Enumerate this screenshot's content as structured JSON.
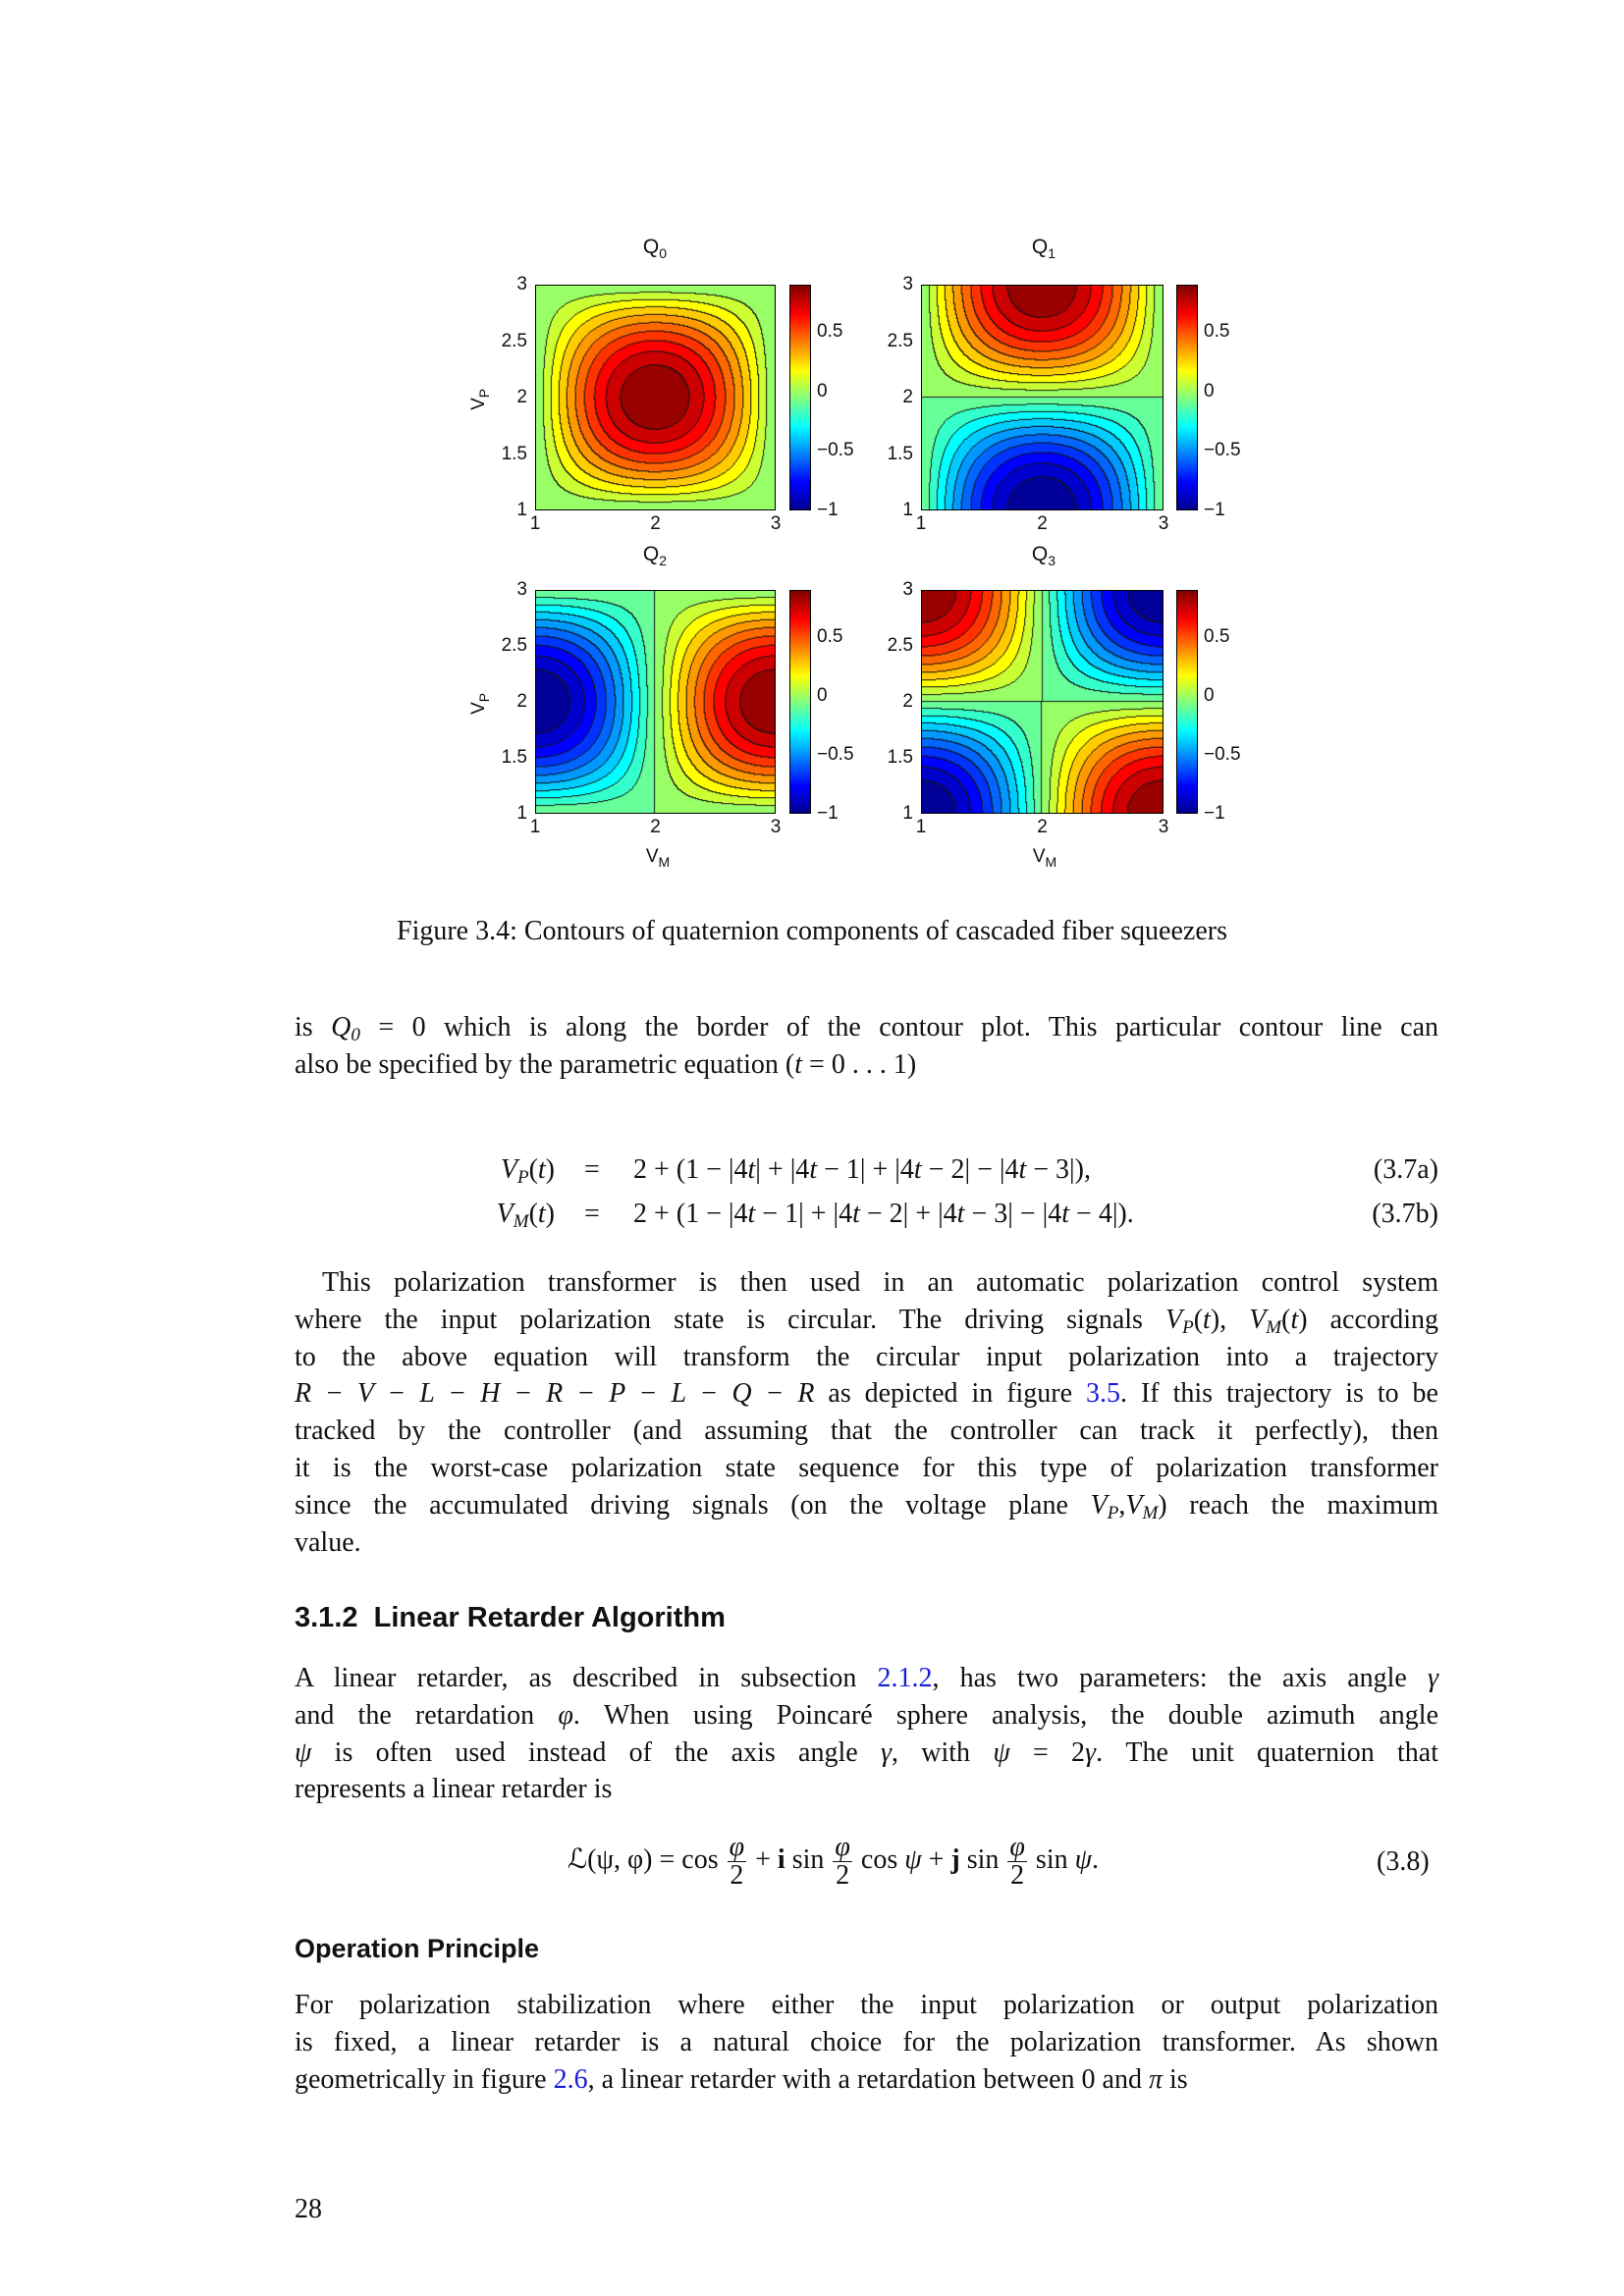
{
  "figure": {
    "caption": "Figure 3.4: Contours of quaternion components of cascaded fiber squeezers"
  },
  "chart_data": [
    {
      "type": "heatmap",
      "subtype": "filled-contour",
      "title": "Q",
      "title_sub": "0",
      "xlabel": "",
      "ylabel": "V",
      "ylabel_sub": "P",
      "xlim": [
        1,
        3
      ],
      "ylim": [
        1,
        3
      ],
      "xticks": [
        "1",
        "2",
        "3"
      ],
      "yticks": [
        "1",
        "1.5",
        "2",
        "2.5",
        "3"
      ],
      "colorbar": {
        "range": [
          -1,
          0.9
        ],
        "ticks": [
          "0.5",
          "0",
          "−0.5",
          "−1"
        ],
        "colormap": "jet"
      },
      "levels_step": 0.1,
      "peak": {
        "VM": 2,
        "VP": 2,
        "value": 1
      },
      "zero_contours": [
        "border"
      ]
    },
    {
      "type": "heatmap",
      "subtype": "filled-contour",
      "title": "Q",
      "title_sub": "1",
      "xlabel": "",
      "ylabel": "",
      "xlim": [
        1,
        3
      ],
      "ylim": [
        1,
        3
      ],
      "xticks": [
        "1",
        "2",
        "3"
      ],
      "yticks": [
        "1",
        "1.5",
        "2",
        "2.5",
        "3"
      ],
      "colorbar": {
        "range": [
          -1,
          0.9
        ],
        "ticks": [
          "0.5",
          "0",
          "−0.5",
          "−1"
        ],
        "colormap": "jet"
      },
      "levels_step": 0.1,
      "max": {
        "VM": 2,
        "VP": 3,
        "value": 1
      },
      "min": {
        "VM": 2,
        "VP": 1,
        "value": -1
      },
      "zero_contours": [
        "VP=2",
        "VM=1",
        "VM=3"
      ]
    },
    {
      "type": "heatmap",
      "subtype": "filled-contour",
      "title": "Q",
      "title_sub": "2",
      "xlabel": "V",
      "xlabel_sub": "M",
      "ylabel": "V",
      "ylabel_sub": "P",
      "xlim": [
        1,
        3
      ],
      "ylim": [
        1,
        3
      ],
      "xticks": [
        "1",
        "2",
        "3"
      ],
      "yticks": [
        "1",
        "1.5",
        "2",
        "2.5",
        "3"
      ],
      "colorbar": {
        "range": [
          -1,
          0.9
        ],
        "ticks": [
          "0.5",
          "0",
          "−0.5",
          "−1"
        ],
        "colormap": "jet"
      },
      "levels_step": 0.1,
      "max": {
        "VM": 3,
        "VP": 2,
        "value": 1
      },
      "min": {
        "VM": 1,
        "VP": 2,
        "value": -1
      },
      "zero_contours": [
        "VM=2",
        "VP=1",
        "VP=3"
      ]
    },
    {
      "type": "heatmap",
      "subtype": "filled-contour",
      "title": "Q",
      "title_sub": "3",
      "xlabel": "V",
      "xlabel_sub": "M",
      "ylabel": "",
      "xlim": [
        1,
        3
      ],
      "ylim": [
        1,
        3
      ],
      "xticks": [
        "1",
        "2",
        "3"
      ],
      "yticks": [
        "1",
        "1.5",
        "2",
        "2.5",
        "3"
      ],
      "colorbar": {
        "range": [
          -1,
          0.9
        ],
        "ticks": [
          "0.5",
          "0",
          "−0.5",
          "−1"
        ],
        "colormap": "jet"
      },
      "levels_step": 0.1,
      "max": [
        {
          "VM": 1,
          "VP": 3,
          "value": 1
        },
        {
          "VM": 3,
          "VP": 1,
          "value": 1
        }
      ],
      "min": [
        {
          "VM": 3,
          "VP": 3,
          "value": -1
        },
        {
          "VM": 1,
          "VP": 1,
          "value": -1
        }
      ],
      "zero_contours": [
        "VM=2",
        "VP=2"
      ]
    }
  ],
  "para1": [
    [
      [
        "",
        "is "
      ],
      [
        "i",
        "Q"
      ],
      [
        "s",
        "0"
      ],
      [
        "",
        " = 0 which is along the border of the contour plot. This particular contour line can"
      ]
    ],
    [
      [
        "",
        "also be specified by the parametric equation ("
      ],
      [
        "i",
        "t"
      ],
      [
        "",
        " = 0 . . . 1)"
      ]
    ]
  ],
  "eq37": [
    {
      "lhs": [
        [
          "i",
          "V"
        ],
        [
          "s",
          "P"
        ],
        [
          "",
          "("
        ],
        [
          "i",
          "t"
        ],
        [
          "",
          ")"
        ]
      ],
      "rhs": [
        [
          "",
          "2 + (1 − |4"
        ],
        [
          "i",
          "t"
        ],
        [
          "",
          "| + |4"
        ],
        [
          "i",
          "t"
        ],
        [
          "",
          " − 1| + |4"
        ],
        [
          "i",
          "t"
        ],
        [
          "",
          " − 2| − |4"
        ],
        [
          "i",
          "t"
        ],
        [
          "",
          " − 3|),"
        ]
      ],
      "num": "(3.7a)"
    },
    {
      "lhs": [
        [
          "i",
          "V"
        ],
        [
          "s",
          "M"
        ],
        [
          "",
          "("
        ],
        [
          "i",
          "t"
        ],
        [
          "",
          ")"
        ]
      ],
      "rhs": [
        [
          "",
          "2 + (1 − |4"
        ],
        [
          "i",
          "t"
        ],
        [
          "",
          " − 1| + |4"
        ],
        [
          "i",
          "t"
        ],
        [
          "",
          " − 2| + |4"
        ],
        [
          "i",
          "t"
        ],
        [
          "",
          " − 3| − |4"
        ],
        [
          "i",
          "t"
        ],
        [
          "",
          " − 4|)."
        ]
      ],
      "num": "(3.7b)"
    }
  ],
  "eq_sign": "=",
  "para2": [
    [
      [
        "",
        " This polarization transformer is then used in an automatic polarization control system"
      ]
    ],
    [
      [
        "",
        "where the input polarization state is circular. The driving signals "
      ],
      [
        "i",
        "V"
      ],
      [
        "s",
        "P"
      ],
      [
        "",
        "("
      ],
      [
        "i",
        "t"
      ],
      [
        "",
        "), "
      ],
      [
        "i",
        "V"
      ],
      [
        "s",
        "M"
      ],
      [
        "",
        "("
      ],
      [
        "i",
        "t"
      ],
      [
        "",
        ") according"
      ]
    ],
    [
      [
        "",
        "to the above equation will transform the circular input polarization into a trajectory"
      ]
    ],
    [
      [
        "i",
        "R − V − L − H − R − P − L − Q − R"
      ],
      [
        "",
        " as depicted in figure "
      ],
      [
        "l",
        "3.5"
      ],
      [
        "",
        ". If this trajectory is to be"
      ]
    ],
    [
      [
        "",
        "tracked by the controller (and assuming that the controller can track it perfectly), then"
      ]
    ],
    [
      [
        "",
        "it is the worst-case polarization state sequence for this type of polarization transformer"
      ]
    ],
    [
      [
        "",
        "since the accumulated driving signals (on the voltage plane "
      ],
      [
        "i",
        "V"
      ],
      [
        "s",
        "P"
      ],
      [
        "",
        ","
      ],
      [
        "i",
        "V"
      ],
      [
        "s",
        "M"
      ],
      [
        "",
        ") reach the maximum"
      ]
    ],
    [
      [
        "",
        "value."
      ]
    ]
  ],
  "section": {
    "number": "3.1.2",
    "title": "Linear Retarder Algorithm"
  },
  "para3": [
    [
      [
        "",
        "A linear retarder, as described in subsection "
      ],
      [
        "l",
        "2.1.2"
      ],
      [
        "",
        ", has two parameters: the axis angle "
      ],
      [
        "i",
        "γ"
      ]
    ],
    [
      [
        "",
        "and the retardation "
      ],
      [
        "i",
        "φ"
      ],
      [
        "",
        ". When using Poincaré sphere analysis, the double azimuth angle"
      ]
    ],
    [
      [
        "i",
        "ψ"
      ],
      [
        "",
        " is often used instead of the axis angle "
      ],
      [
        "i",
        "γ"
      ],
      [
        "",
        ", with "
      ],
      [
        "i",
        "ψ"
      ],
      [
        "",
        " = 2"
      ],
      [
        "i",
        "γ"
      ],
      [
        "",
        ". The unit quaternion that"
      ]
    ],
    [
      [
        "",
        "represents a linear retarder is"
      ]
    ]
  ],
  "eq38": {
    "lhs": "ℒ(ψ, φ) = cos",
    "frac_num": "φ",
    "frac_den": "2",
    "t1": "+ ",
    "i": "i",
    "t2": " sin",
    "t3": " cos ",
    "psi": "ψ",
    "t4": " + ",
    "j": "j",
    "t5": " sin",
    "t6": " sin ",
    "t7": ".",
    "num": "(3.8)"
  },
  "subsection": {
    "title": "Operation Principle"
  },
  "para4": [
    [
      [
        "",
        "For polarization stabilization where either the input polarization or output polarization"
      ]
    ],
    [
      [
        "",
        "is fixed, a linear retarder is a natural choice for the polarization transformer. As shown"
      ]
    ],
    [
      [
        "",
        "geometrically in figure "
      ],
      [
        "l",
        "2.6"
      ],
      [
        "",
        ", a linear retarder with a retardation between 0 and "
      ],
      [
        "i",
        "π"
      ],
      [
        "",
        " is"
      ]
    ]
  ],
  "page_number": "28"
}
